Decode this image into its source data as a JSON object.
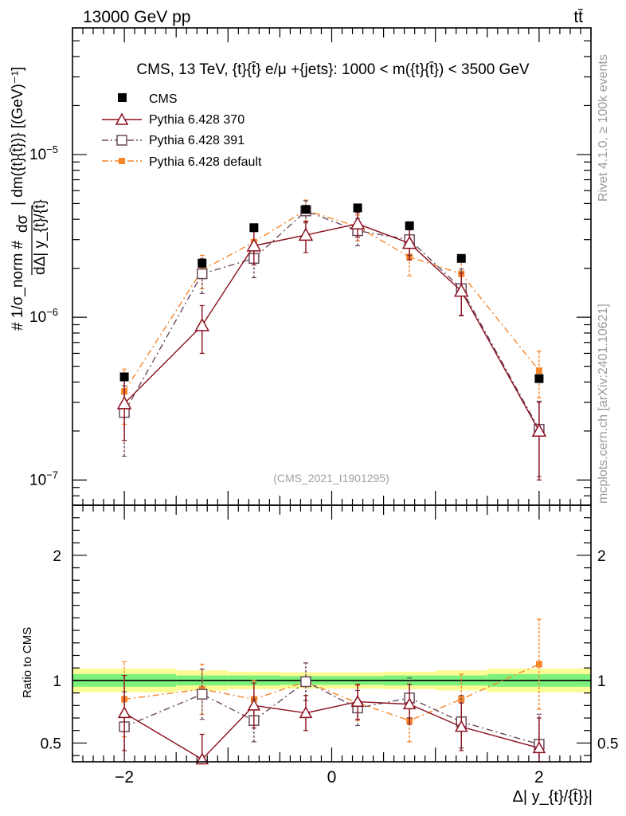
{
  "header": {
    "energy_label": "13000 GeV pp",
    "process_label": "tt̄"
  },
  "side_labels": {
    "rivet": "Rivet 4.1.0, ≥ 100k events",
    "mcplots": "mcplots.cern.ch [arXiv:2401.10621]"
  },
  "colors": {
    "cms": "#000000",
    "p370": "#8b0f1e",
    "p391": "#6b4a5e",
    "pdefault": "#f7862a",
    "band_inner": "#7cf27c",
    "band_outer": "#fbfb96"
  },
  "chart_data": [
    {
      "type": "scatter",
      "title": "CMS, 13 TeV, {t}{t̄} e/μ +{jets}: 1000 < m({t}{t̄}) < 3500 GeV",
      "watermark": "(CMS_2021_I1901295)",
      "ylabel_numerator": "dσ",
      "ylabel_unit": "| dm({t}{t̄})} [(GeV)⁻¹]",
      "ylabel_prefix": "# 1/σ_norm #",
      "ylabel_denominator": "dΔ| y_{t}/{t̄}",
      "yscale": "log",
      "xlim": [
        -2.5,
        2.5
      ],
      "ylim": [
        7e-08,
        6e-05
      ],
      "x": [
        -2.0,
        -1.25,
        -0.75,
        -0.25,
        0.25,
        0.75,
        1.25,
        2.0
      ],
      "y_ticks": [
        {
          "value": 1e-07,
          "base": "10",
          "exp": "−7"
        },
        {
          "value": 1e-06,
          "base": "10",
          "exp": "−6"
        },
        {
          "value": 1e-05,
          "base": "10",
          "exp": "−5"
        }
      ],
      "series": [
        {
          "name": "CMS",
          "key": "cms",
          "style": "square-filled",
          "values": [
            4.3e-07,
            2.15e-06,
            3.55e-06,
            4.6e-06,
            4.7e-06,
            3.65e-06,
            2.3e-06,
            4.2e-07
          ],
          "errors": [
            0,
            0,
            0,
            0,
            0,
            0,
            0,
            0
          ]
        },
        {
          "name": "Pythia 6.428 370",
          "key": "p370",
          "style": "triangle-open",
          "values": [
            2.95e-07,
            8.9e-07,
            2.75e-06,
            3.2e-06,
            3.75e-06,
            2.85e-06,
            1.45e-06,
            2e-07
          ],
          "errors": [
            1.2e-07,
            2.9e-07,
            6.5e-07,
            7e-07,
            6.5e-07,
            6e-07,
            4.2e-07,
            1e-07
          ]
        },
        {
          "name": "Pythia 6.428 391",
          "key": "p391",
          "style": "square-open",
          "values": [
            2.6e-07,
            1.85e-06,
            2.3e-06,
            4.5e-06,
            3.4e-06,
            3e-06,
            1.5e-06,
            2.05e-07
          ],
          "errors": [
            1.2e-07,
            4.5e-07,
            5.5e-07,
            7e-07,
            6.5e-07,
            6e-07,
            4.8e-07,
            1e-07
          ]
        },
        {
          "name": "Pythia 6.428 default",
          "key": "pdefault",
          "style": "square-small",
          "values": [
            3.5e-07,
            1.95e-06,
            2.9e-06,
            4.55e-06,
            3.6e-06,
            2.35e-06,
            1.85e-06,
            4.7e-07
          ],
          "errors": [
            1.3e-07,
            4.5e-07,
            5.5e-07,
            7e-07,
            6.5e-07,
            5.5e-07,
            4.5e-07,
            1.5e-07
          ]
        }
      ]
    },
    {
      "type": "scatter",
      "ylabel": "Ratio to CMS",
      "xlabel": "Δ| y_{t}/{t̄}}|",
      "xlim": [
        -2.5,
        2.5
      ],
      "ylim": [
        0.35,
        2.4
      ],
      "x_ticks": [
        {
          "value": -2,
          "label": "−2"
        },
        {
          "value": 0,
          "label": "0"
        },
        {
          "value": 2,
          "label": "2"
        }
      ],
      "y_ticks": [
        {
          "value": 0.5,
          "label": "0.5"
        },
        {
          "value": 1,
          "label": "1"
        },
        {
          "value": 2,
          "label": "2"
        }
      ],
      "bin_edges": [
        -2.5,
        -1.5,
        -1.0,
        -0.5,
        0.0,
        0.5,
        1.0,
        1.5,
        2.5
      ],
      "band_inner": [
        0.05,
        0.04,
        0.04,
        0.035,
        0.035,
        0.04,
        0.04,
        0.05
      ],
      "band_outer": [
        0.095,
        0.08,
        0.07,
        0.065,
        0.065,
        0.07,
        0.08,
        0.095
      ],
      "x": [
        -2.0,
        -1.25,
        -0.75,
        -0.25,
        0.25,
        0.75,
        1.25,
        2.0
      ],
      "series": [
        {
          "name": "Pythia 6.428 370",
          "key": "p370",
          "values": [
            0.74,
            0.37,
            0.8,
            0.74,
            0.83,
            0.81,
            0.63,
            0.46
          ],
          "errors": [
            0.3,
            0.2,
            0.18,
            0.14,
            0.14,
            0.16,
            0.19,
            0.24
          ]
        },
        {
          "name": "Pythia 6.428 391",
          "key": "p391",
          "values": [
            0.63,
            0.89,
            0.68,
            0.99,
            0.78,
            0.86,
            0.67,
            0.49
          ],
          "errors": [
            0.28,
            0.2,
            0.17,
            0.15,
            0.14,
            0.16,
            0.21,
            0.24
          ]
        },
        {
          "name": "Pythia 6.428 default",
          "key": "pdefault",
          "values": [
            0.85,
            0.93,
            0.85,
            0.99,
            0.82,
            0.68,
            0.85,
            1.13
          ],
          "errors": [
            0.3,
            0.2,
            0.15,
            0.15,
            0.14,
            0.17,
            0.2,
            0.36
          ]
        }
      ]
    }
  ]
}
